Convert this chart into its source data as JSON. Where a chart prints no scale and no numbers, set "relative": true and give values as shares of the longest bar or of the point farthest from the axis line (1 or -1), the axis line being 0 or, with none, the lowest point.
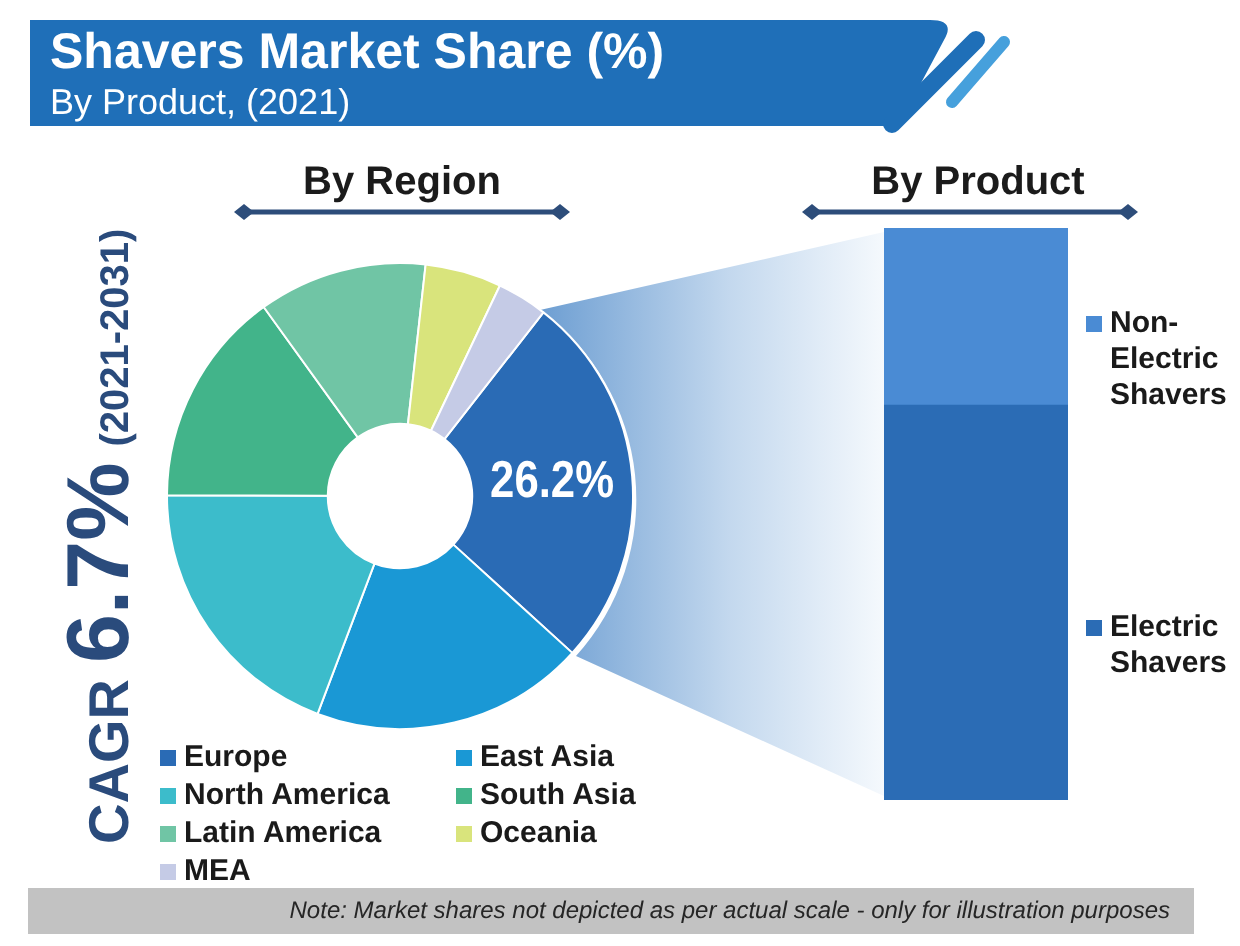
{
  "chart_data": [
    {
      "type": "donut",
      "title": "Shavers Market Share (%)",
      "subtitle": "By Product, (2021)",
      "categories": [
        "Europe",
        "East Asia",
        "North America",
        "South Asia",
        "Latin America",
        "Oceania",
        "MEA"
      ],
      "values": [
        26.2,
        19.0,
        19.3,
        15.0,
        11.7,
        5.3,
        3.5
      ],
      "colors": [
        "#2a6bb5",
        "#1a98d5",
        "#3cbccb",
        "#42b48a",
        "#70c5a5",
        "#d9e47c",
        "#c5cbe6"
      ],
      "value_labels": [
        "26.2%",
        null,
        null,
        null,
        null,
        null,
        null
      ],
      "legend": "bottom",
      "annotations": [
        "By Region",
        "CAGR 6.7% (2021-2031)",
        "Note: Market shares not depicted as per actual scale - only for illustration purposes"
      ]
    },
    {
      "type": "bar",
      "title": "By Product",
      "categories": [
        null
      ],
      "stacked": true,
      "relative": true,
      "legend": "right",
      "series": [
        {
          "name": "Electric Shavers",
          "color": "#2b6cb5",
          "values": [
            0.69
          ]
        },
        {
          "name": "Non-Electric Shavers",
          "color": "#4a8bd4",
          "values": [
            0.31
          ]
        }
      ]
    }
  ]
}
